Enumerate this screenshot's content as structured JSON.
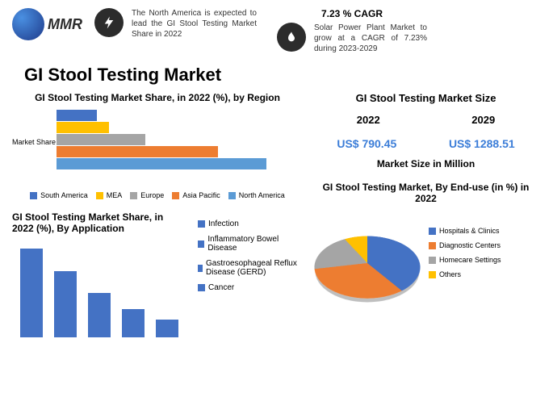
{
  "header": {
    "logo_text": "MMR",
    "info1_text": "The North America is expected to lead the GI Stool Testing Market Share in 2022",
    "cagr_title": "7.23 % CAGR",
    "info2_text": "Solar Power Plant Market to grow at a CAGR of 7.23% during 2023-2029"
  },
  "main_title": "GI Stool Testing Market",
  "region_chart": {
    "title": "GI Stool Testing Market Share, in 2022 (%), by Region",
    "ylabel": "Market Share",
    "type": "bar_horizontal",
    "bars": [
      {
        "label": "South America",
        "value": 50,
        "color": "#4472c4"
      },
      {
        "label": "MEA",
        "value": 65,
        "color": "#ffc000"
      },
      {
        "label": "Europe",
        "value": 110,
        "color": "#a5a5a5"
      },
      {
        "label": "Asia Pacific",
        "value": 200,
        "color": "#ed7d31"
      },
      {
        "label": "North America",
        "value": 260,
        "color": "#5b9bd5"
      }
    ]
  },
  "application_chart": {
    "title": "GI Stool Testing Market Share, in 2022 (%), By Application",
    "type": "bar_vertical",
    "bar_color": "#4472c4",
    "bars": [
      {
        "label": "Infection",
        "value": 110
      },
      {
        "label": "Inflammatory Bowel Disease",
        "value": 82
      },
      {
        "label": "Gastroesophageal Reflux Disease (GERD)",
        "value": 55
      },
      {
        "label": "Cancer",
        "value": 35
      },
      {
        "label": "",
        "value": 22
      }
    ]
  },
  "market_size": {
    "title": "GI Stool Testing Market Size",
    "year1": "2022",
    "year2": "2029",
    "value1": "US$ 790.45",
    "value2": "US$ 1288.51",
    "unit": "Market Size in Million",
    "value_color": "#3b7dd8"
  },
  "enduse_chart": {
    "title": "GI Stool Testing Market, By End-use (in %) in 2022",
    "type": "pie",
    "slices": [
      {
        "label": "Hospitals & Clinics",
        "value": 40,
        "color": "#4472c4"
      },
      {
        "label": "Diagnostic Centers",
        "value": 32,
        "color": "#ed7d31"
      },
      {
        "label": "Homecare Settings",
        "value": 20,
        "color": "#a5a5a5"
      },
      {
        "label": "Others",
        "value": 8,
        "color": "#ffc000"
      }
    ]
  }
}
